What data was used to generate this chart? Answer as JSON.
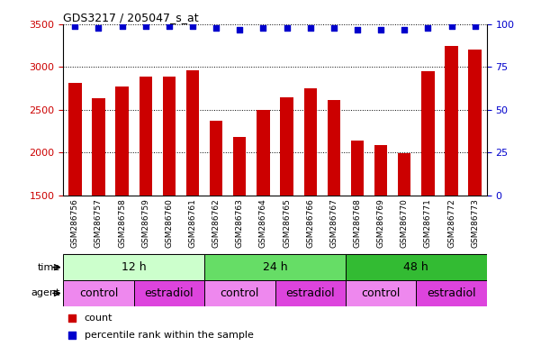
{
  "title": "GDS3217 / 205047_s_at",
  "samples": [
    "GSM286756",
    "GSM286757",
    "GSM286758",
    "GSM286759",
    "GSM286760",
    "GSM286761",
    "GSM286762",
    "GSM286763",
    "GSM286764",
    "GSM286765",
    "GSM286766",
    "GSM286767",
    "GSM286768",
    "GSM286769",
    "GSM286770",
    "GSM286771",
    "GSM286772",
    "GSM286773"
  ],
  "counts": [
    2820,
    2640,
    2770,
    2890,
    2890,
    2960,
    2370,
    2180,
    2500,
    2650,
    2750,
    2620,
    2140,
    2090,
    1990,
    2950,
    3250,
    3200
  ],
  "percentile_ranks": [
    99,
    98,
    99,
    99,
    99,
    99,
    98,
    97,
    98,
    98,
    98,
    98,
    97,
    97,
    97,
    98,
    99,
    99
  ],
  "ylim_left": [
    1500,
    3500
  ],
  "ylim_right": [
    0,
    100
  ],
  "yticks_left": [
    1500,
    2000,
    2500,
    3000,
    3500
  ],
  "yticks_right": [
    0,
    25,
    50,
    75,
    100
  ],
  "bar_color": "#cc0000",
  "dot_color": "#0000cc",
  "bg_color": "#ffffff",
  "chart_bg": "#ffffff",
  "xtick_bg": "#d0d0d0",
  "time_groups": [
    {
      "label": "12 h",
      "start": 0,
      "end": 6,
      "color": "#ccffcc"
    },
    {
      "label": "24 h",
      "start": 6,
      "end": 12,
      "color": "#66dd66"
    },
    {
      "label": "48 h",
      "start": 12,
      "end": 18,
      "color": "#33bb33"
    }
  ],
  "agent_groups": [
    {
      "label": "control",
      "start": 0,
      "end": 3,
      "color": "#ee88ee"
    },
    {
      "label": "estradiol",
      "start": 3,
      "end": 6,
      "color": "#dd44dd"
    },
    {
      "label": "control",
      "start": 6,
      "end": 9,
      "color": "#ee88ee"
    },
    {
      "label": "estradiol",
      "start": 9,
      "end": 12,
      "color": "#dd44dd"
    },
    {
      "label": "control",
      "start": 12,
      "end": 15,
      "color": "#ee88ee"
    },
    {
      "label": "estradiol",
      "start": 15,
      "end": 18,
      "color": "#dd44dd"
    }
  ],
  "tick_color_left": "#cc0000",
  "tick_color_right": "#0000cc",
  "bar_width": 0.55
}
